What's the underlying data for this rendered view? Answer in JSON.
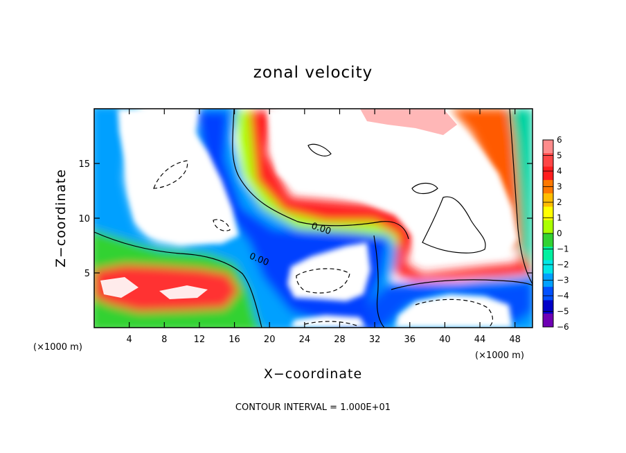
{
  "chart_data": {
    "type": "heatmap",
    "title": "zonal velocity",
    "xlabel": "X−coordinate",
    "ylabel": "Z−coordinate",
    "x_unit": "(×1000 m)",
    "y_unit": "(×1000 m)",
    "xlim": [
      0,
      50
    ],
    "ylim": [
      0,
      20
    ],
    "x_ticks": [
      4,
      8,
      12,
      16,
      20,
      24,
      28,
      32,
      36,
      40,
      44,
      48
    ],
    "y_ticks": [
      5,
      10,
      15
    ],
    "x_tick_labels": [
      "4",
      "8",
      "12",
      "16",
      "20",
      "24",
      "28",
      "32",
      "36",
      "40",
      "44",
      "48"
    ],
    "y_tick_labels": [
      "5",
      "10",
      "15"
    ],
    "colorbar": {
      "levels": [
        6,
        5,
        4,
        3,
        2,
        1,
        0,
        -1,
        -2,
        -3,
        -4,
        -5,
        -6
      ],
      "labels": [
        "6",
        "5",
        "4",
        "3",
        "2",
        "1",
        "0",
        "−1",
        "−2",
        "−3",
        "−4",
        "−5",
        "−6"
      ],
      "colors": [
        "#ff8c8c",
        "#ff4646",
        "#ff1e1e",
        "#ff7800",
        "#ffbe00",
        "#ffff00",
        "#aaff00",
        "#32d232",
        "#00f0a0",
        "#00e6e6",
        "#00a0ff",
        "#0050ff",
        "#0000c8",
        "#6e00b4"
      ],
      "background": "#ffffff"
    },
    "contour_labels": [
      {
        "text": "0.00",
        "x": 18.7,
        "z": 6.0
      },
      {
        "text": "0.00",
        "x": 25.8,
        "z": 8.8
      }
    ],
    "footer": "CONTOUR INTERVAL = 1.000E+01"
  }
}
